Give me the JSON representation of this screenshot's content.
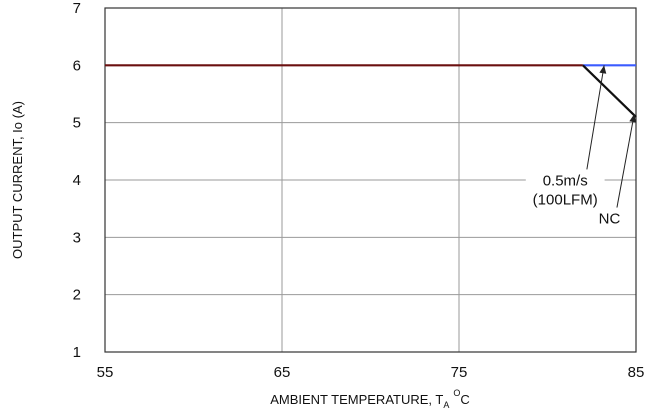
{
  "chart_data": {
    "type": "line",
    "xlabel_main": "AMBIENT TEMPERATURE, T",
    "xlabel_sub": "A",
    "xlabel_sup": "O",
    "xlabel_unit": "C",
    "ylabel": "OUTPUT CURRENT, Io  (A)",
    "xlim": [
      55,
      85
    ],
    "ylim": [
      1,
      7
    ],
    "x_ticks": [
      "55",
      "65",
      "75",
      "85"
    ],
    "y_ticks": [
      "1",
      "2",
      "3",
      "4",
      "5",
      "6",
      "7"
    ],
    "grid": true,
    "series": [
      {
        "name": "0.5m/s (100LFM)",
        "color": "#3b5bff",
        "x": [
          55,
          82,
          85
        ],
        "y": [
          6,
          6,
          6
        ]
      },
      {
        "name": "NC",
        "color": "#111111",
        "x": [
          55,
          82,
          85
        ],
        "y": [
          6,
          6,
          5.1
        ]
      }
    ],
    "annotations": [
      {
        "lines": [
          "0.5m/s",
          "(100LFM)"
        ],
        "x": 81,
        "y": 3.8,
        "target": [
          83.2,
          6
        ]
      },
      {
        "lines": [
          "NC"
        ],
        "x": 83.5,
        "y": 3.3,
        "target": [
          84.9,
          5.15
        ]
      }
    ],
    "baseline_color": "#6b1010"
  }
}
